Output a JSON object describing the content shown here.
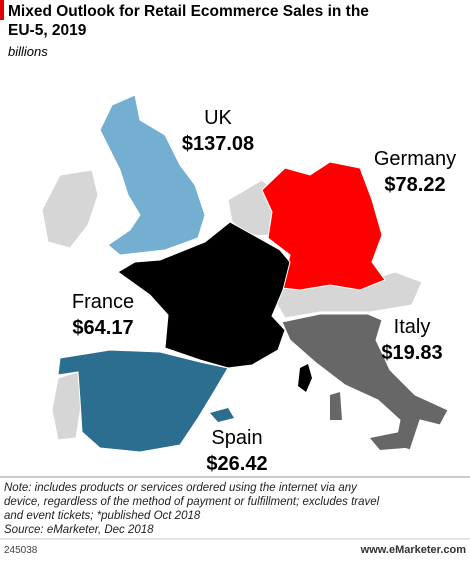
{
  "header": {
    "title_line1": "Mixed Outlook for Retail Ecommerce Sales in the",
    "title_line2": "EU-5, 2019",
    "subtitle": "billions"
  },
  "regions": [
    {
      "name": "UK",
      "label": "$137.08",
      "color": "#74afd1"
    },
    {
      "name": "Germany",
      "label": "$78.22",
      "color": "#ff0000"
    },
    {
      "name": "France",
      "label": "$64.17",
      "color": "#000000"
    },
    {
      "name": "Italy",
      "label": "$19.83",
      "color": "#676767"
    },
    {
      "name": "Spain",
      "label": "$26.42",
      "color": "#2b6e8f"
    }
  ],
  "footer": {
    "note_line1": "Note: includes products or services ordered using the internet via any",
    "note_line2": "device, regardless of the method of payment or fulfillment; excludes travel",
    "note_line3": "and event tickets; *published Oct 2018",
    "source": "Source: eMarketer, Dec 2018",
    "id": "245038",
    "brand": "www.eMarketer.com"
  }
}
